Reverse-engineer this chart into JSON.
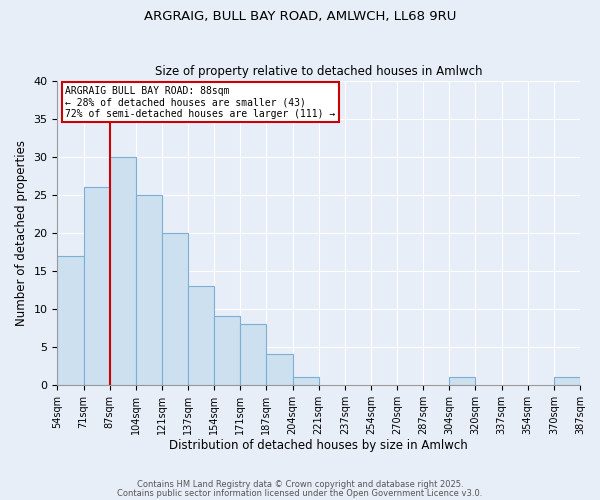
{
  "title1": "ARGRAIG, BULL BAY ROAD, AMLWCH, LL68 9RU",
  "title2": "Size of property relative to detached houses in Amlwch",
  "xlabel": "Distribution of detached houses by size in Amlwch",
  "ylabel": "Number of detached properties",
  "bin_starts": [
    54,
    71,
    88,
    105,
    122,
    139,
    156,
    173,
    190,
    207,
    224,
    241,
    258,
    275,
    292,
    309,
    326,
    343,
    360,
    377
  ],
  "bin_width": 17,
  "bar_heights": [
    17,
    26,
    30,
    25,
    20,
    13,
    9,
    8,
    4,
    1,
    0,
    0,
    0,
    0,
    0,
    1,
    0,
    0,
    0,
    1
  ],
  "tick_labels": [
    "54sqm",
    "71sqm",
    "87sqm",
    "104sqm",
    "121sqm",
    "137sqm",
    "154sqm",
    "171sqm",
    "187sqm",
    "204sqm",
    "221sqm",
    "237sqm",
    "254sqm",
    "270sqm",
    "287sqm",
    "304sqm",
    "320sqm",
    "337sqm",
    "354sqm",
    "370sqm",
    "387sqm"
  ],
  "tick_positions": [
    54,
    71,
    88,
    105,
    122,
    139,
    156,
    173,
    190,
    207,
    224,
    241,
    258,
    275,
    292,
    309,
    326,
    343,
    360,
    377,
    394
  ],
  "bar_color": "#cce0f0",
  "bar_edge_color": "#7bafd4",
  "vline_x": 88,
  "vline_color": "#cc0000",
  "ylim": [
    0,
    40
  ],
  "yticks": [
    0,
    5,
    10,
    15,
    20,
    25,
    30,
    35,
    40
  ],
  "xlim_left": 54,
  "xlim_right": 394,
  "annotation_title": "ARGRAIG BULL BAY ROAD: 88sqm",
  "annotation_line2": "← 28% of detached houses are smaller (43)",
  "annotation_line3": "72% of semi-detached houses are larger (111) →",
  "annotation_box_color": "#cc0000",
  "bg_color": "#e8eef8",
  "plot_bg_color": "#e8eef8",
  "grid_color": "#ffffff",
  "footer1": "Contains HM Land Registry data © Crown copyright and database right 2025.",
  "footer2": "Contains public sector information licensed under the Open Government Licence v3.0."
}
